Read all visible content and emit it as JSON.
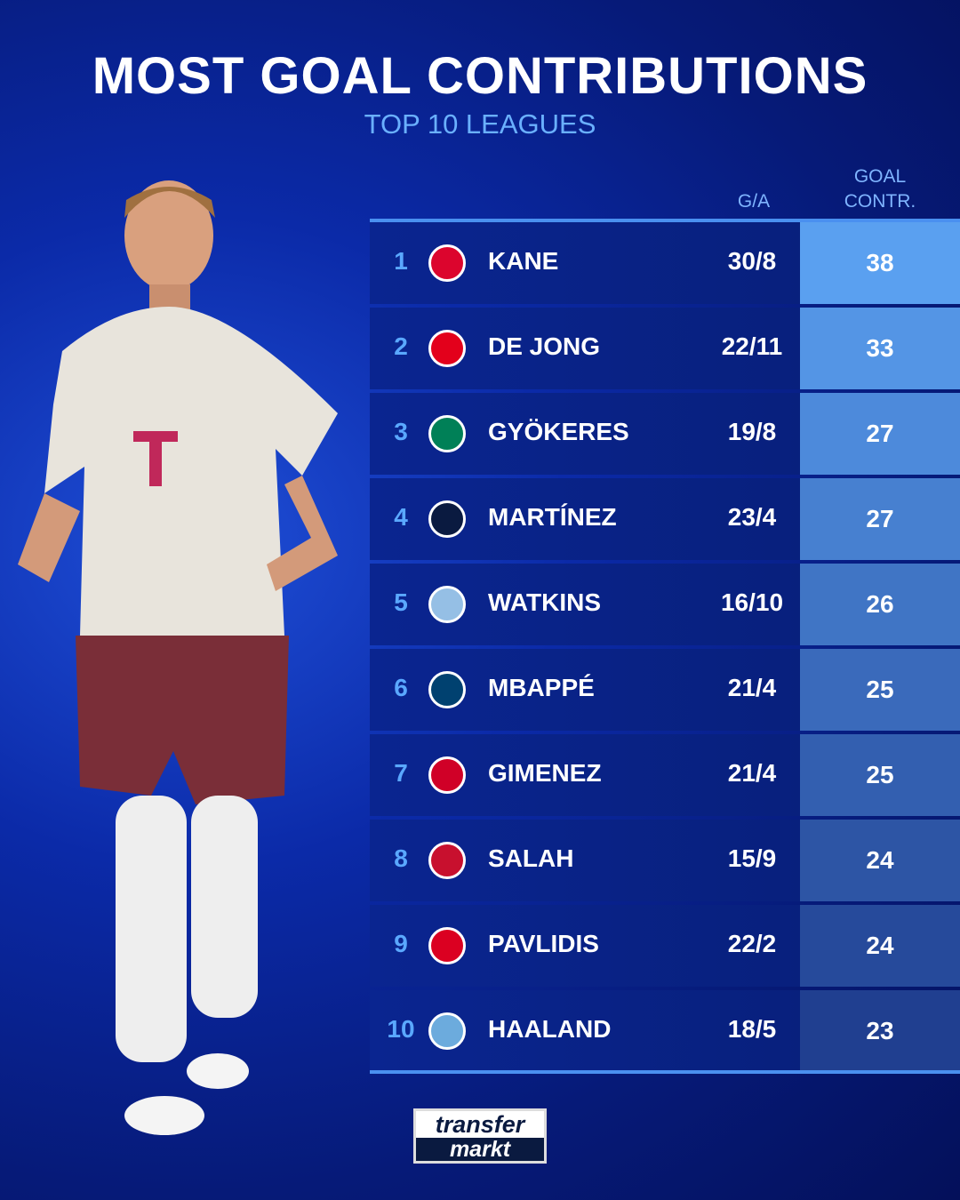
{
  "title": "MOST GOAL CONTRIBUTIONS",
  "subtitle": "TOP 10 LEAGUES",
  "headers": {
    "ga": "G/A",
    "gc_line1": "GOAL",
    "gc_line2": "CONTR."
  },
  "brand": {
    "line1": "transfer",
    "line2": "markt"
  },
  "colors": {
    "accent": "#4a90f0",
    "rank": "#5aa8ff",
    "gc_top": "#5aa0f0",
    "gc_bottom": "#203f90"
  },
  "chart_data": {
    "type": "table",
    "title": "MOST GOAL CONTRIBUTIONS",
    "subtitle": "TOP 10 LEAGUES",
    "columns": [
      "",
      "",
      "G/A",
      "GOAL CONTR."
    ],
    "rows": [
      {
        "rank": "1",
        "club_icon": "bayern-munich-crest",
        "name": "KANE",
        "ga": "30/8",
        "gc": "38",
        "crest": "#dc052d"
      },
      {
        "rank": "2",
        "club_icon": "psv-crest",
        "name": "DE JONG",
        "ga": "22/11",
        "gc": "33",
        "crest": "#e3001b"
      },
      {
        "rank": "3",
        "club_icon": "sporting-cp-crest",
        "name": "GYÖKERES",
        "ga": "19/8",
        "gc": "27",
        "crest": "#008057"
      },
      {
        "rank": "4",
        "club_icon": "inter-crest",
        "name": "MARTÍNEZ",
        "ga": "23/4",
        "gc": "27",
        "crest": "#0a1a40"
      },
      {
        "rank": "5",
        "club_icon": "aston-villa-crest",
        "name": "WATKINS",
        "ga": "16/10",
        "gc": "26",
        "crest": "#95bfe5"
      },
      {
        "rank": "6",
        "club_icon": "psg-crest",
        "name": "MBAPPÉ",
        "ga": "21/4",
        "gc": "25",
        "crest": "#004170"
      },
      {
        "rank": "7",
        "club_icon": "feyenoord-crest",
        "name": "GIMENEZ",
        "ga": "21/4",
        "gc": "25",
        "crest": "#d00027"
      },
      {
        "rank": "8",
        "club_icon": "liverpool-crest",
        "name": "SALAH",
        "ga": "15/9",
        "gc": "24",
        "crest": "#c8102e"
      },
      {
        "rank": "9",
        "club_icon": "az-alkmaar-crest",
        "name": "PAVLIDIS",
        "ga": "22/2",
        "gc": "24",
        "crest": "#db0021"
      },
      {
        "rank": "10",
        "club_icon": "manchester-city-crest",
        "name": "HAALAND",
        "ga": "18/5",
        "gc": "23",
        "crest": "#6cabdd"
      }
    ]
  }
}
